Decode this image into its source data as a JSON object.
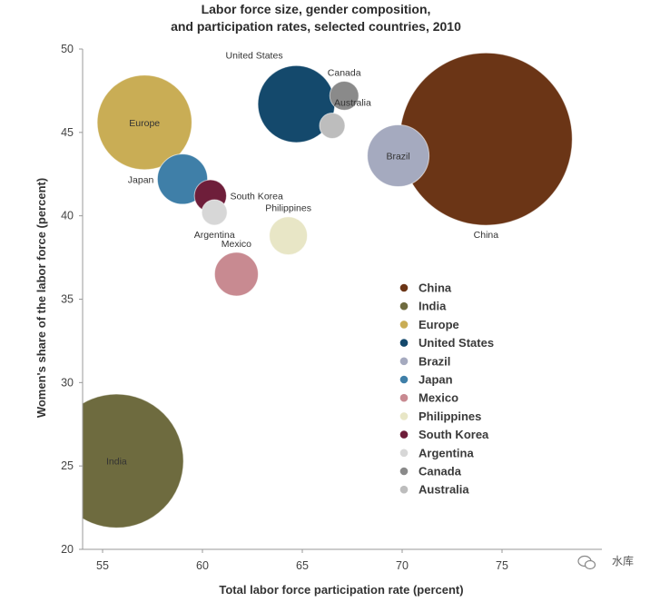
{
  "chart_data": {
    "type": "scatter",
    "title_lines": [
      "Labor force size, gender composition,",
      "and participation rates, selected countries, 2010"
    ],
    "xlabel": "Total labor force participation rate (percent)",
    "ylabel": "Women's share of the labor force (percent)",
    "xlim": [
      54,
      80
    ],
    "ylim": [
      20,
      50
    ],
    "x_ticks": [
      55,
      60,
      65,
      70,
      75
    ],
    "y_ticks": [
      20,
      25,
      30,
      35,
      40,
      45,
      50
    ],
    "grid": false,
    "legend_position": "right",
    "bubble_size_note": "bubble area represents labor force size",
    "series": [
      {
        "name": "China",
        "x": 74.2,
        "y": 44.6,
        "size": 780,
        "color": "#6b3516",
        "label": "China",
        "label_pos": "below"
      },
      {
        "name": "India",
        "x": 55.7,
        "y": 25.3,
        "size": 470,
        "color": "#6e6b3f",
        "label": "India",
        "label_pos": "inside"
      },
      {
        "name": "Europe",
        "x": 57.1,
        "y": 45.6,
        "size": 235,
        "color": "#c9ad55",
        "label": "Europe",
        "label_pos": "inside"
      },
      {
        "name": "United States",
        "x": 64.7,
        "y": 46.7,
        "size": 155,
        "color": "#14496c",
        "label": "United States",
        "label_pos": "upper-left"
      },
      {
        "name": "Brazil",
        "x": 69.8,
        "y": 43.6,
        "size": 100,
        "color": "#a5aabf",
        "label": "Brazil",
        "label_pos": "inside"
      },
      {
        "name": "Japan",
        "x": 59.0,
        "y": 42.2,
        "size": 66,
        "color": "#3f7fa8",
        "label": "Japan",
        "label_pos": "left"
      },
      {
        "name": "Mexico",
        "x": 61.7,
        "y": 36.5,
        "size": 50,
        "color": "#c88a91",
        "label": "Mexico",
        "label_pos": "above"
      },
      {
        "name": "Philippines",
        "x": 64.3,
        "y": 38.8,
        "size": 38,
        "color": "#e8e6c6",
        "label": "Philippines",
        "label_pos": "above"
      },
      {
        "name": "South Korea",
        "x": 60.4,
        "y": 41.2,
        "size": 27,
        "color": "#6e1e3a",
        "label": "South Korea",
        "label_pos": "right"
      },
      {
        "name": "Argentina",
        "x": 60.6,
        "y": 40.2,
        "size": 17,
        "color": "#d7d7d7",
        "label": "Argentina",
        "label_pos": "below"
      },
      {
        "name": "Canada",
        "x": 67.1,
        "y": 47.2,
        "size": 22,
        "color": "#8a8a8a",
        "label": "Canada",
        "label_pos": "above"
      },
      {
        "name": "Australia",
        "x": 66.5,
        "y": 45.4,
        "size": 17,
        "color": "#bdbdbd",
        "label": "Australia",
        "label_pos": "above-right"
      }
    ]
  },
  "watermark": {
    "text": "水库",
    "icon": "wechat-icon"
  }
}
